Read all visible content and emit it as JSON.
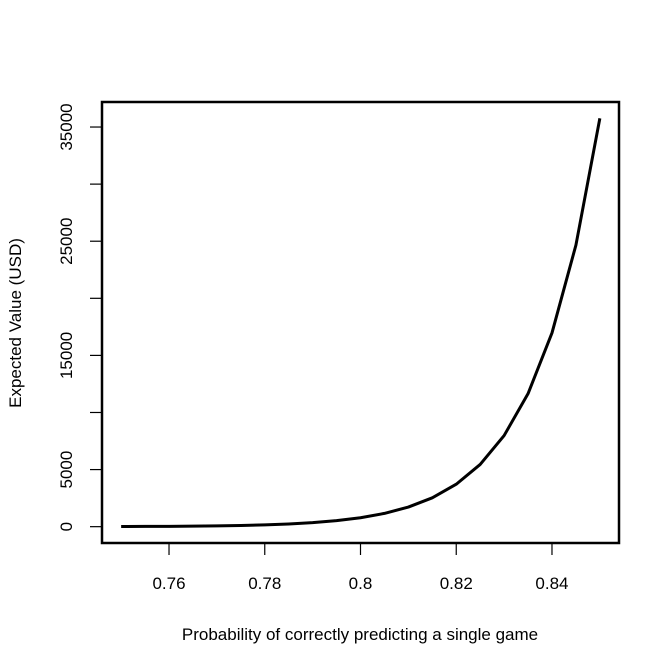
{
  "chart_data": {
    "type": "line",
    "xlabel": "Probability of correctly predicting a single game",
    "ylabel": "Expected Value (USD)",
    "x": [
      0.75,
      0.755,
      0.76,
      0.765,
      0.77,
      0.775,
      0.78,
      0.785,
      0.79,
      0.795,
      0.8,
      0.805,
      0.81,
      0.815,
      0.82,
      0.825,
      0.83,
      0.835,
      0.84,
      0.845,
      0.85
    ],
    "series": [
      {
        "color": "#000000",
        "values": [
          13.5,
          20.9,
          31.0,
          46.8,
          70.6,
          106.2,
          159.2,
          238.1,
          355.2,
          528.6,
          784.6,
          1161.8,
          1716,
          2529,
          3718,
          5453,
          7979,
          11648,
          16966,
          24657,
          35762
        ]
      }
    ],
    "xlim": [
      0.746,
      0.854
    ],
    "ylim": [
      -1430,
      37192
    ],
    "xticks": [
      0.76,
      0.78,
      0.8,
      0.82,
      0.84
    ],
    "yticks": [
      0,
      5000,
      15000,
      25000,
      35000
    ],
    "yticks_unlabeled": [
      10000,
      20000,
      30000
    ]
  }
}
